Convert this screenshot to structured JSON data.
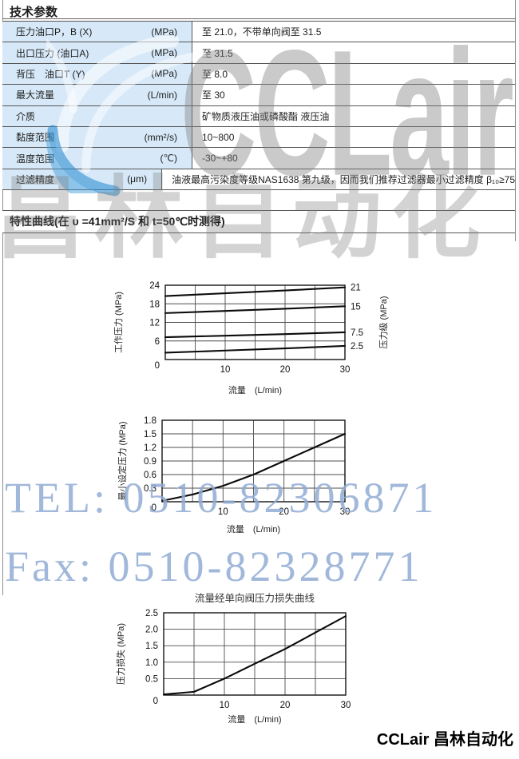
{
  "page": {
    "footer_brand": "CCLair 昌林自动化"
  },
  "sections": {
    "params_title": "技术参数",
    "curves_title": "特性曲线(在 υ =41mm²/S 和 t=50℃时测得)"
  },
  "table": {
    "rows": [
      {
        "label": "压力油口P，B (X)",
        "unit": "(MPa)",
        "value": "至 21.0，不带单向阀至 31.5"
      },
      {
        "label": "出口压力 (油口A)",
        "unit": "(MPa)",
        "value": "至 31.5"
      },
      {
        "label": "背压　油口T (Y)",
        "unit": "(MPa)",
        "value": "至 8.0"
      },
      {
        "label": "最大流量",
        "unit": "(L/min)",
        "value": "至 30"
      },
      {
        "label": "介质",
        "unit": "",
        "value": "矿物质液压油或磷酸酯 液压油"
      },
      {
        "label": "黏度范围",
        "unit": "(mm²/s)",
        "value": "10~800"
      },
      {
        "label": "温度范围",
        "unit": "(℃)",
        "value": "-30~+80"
      },
      {
        "label": "过滤精度",
        "unit": "(μm)",
        "value": "油液最高污染度等级NAS1638 第九级，因而我们推荐过滤器最小过滤精度 β₁₀≥75"
      }
    ]
  },
  "watermark": {
    "brand": "CCLair",
    "brand_cn": "昌林自动化",
    "tel": "TEL: 0510-82306871",
    "fax": "Fax: 0510-82328771",
    "swoosh_blue": "#2f8fd2",
    "text_gray": "#808080",
    "contact_blue": "#91acd4"
  },
  "chart_data": [
    {
      "type": "line",
      "title": "",
      "xlabel": "流量",
      "xunit": "(L/min)",
      "ylabel_left": "工作压力 (MPa)",
      "ylabel_right": "压力级 (MPa)",
      "xlim": [
        0,
        30
      ],
      "ylim": [
        0,
        24
      ],
      "xgrid_step": 5,
      "xticks": [
        "0",
        "10",
        "20",
        "30"
      ],
      "yticks": [
        "0",
        "6",
        "12",
        "18",
        "24"
      ],
      "grid": true,
      "legend_position": "right-axis-labels",
      "series": [
        {
          "name": "压力级 21 MPa",
          "right_label": "21",
          "points": [
            [
              0,
              20.5
            ],
            [
              10,
              21.4
            ],
            [
              20,
              22.3
            ],
            [
              30,
              23.3
            ]
          ]
        },
        {
          "name": "压力级 15 MPa",
          "right_label": "15",
          "points": [
            [
              0,
              15.0
            ],
            [
              10,
              15.7
            ],
            [
              20,
              16.4
            ],
            [
              30,
              17.2
            ]
          ]
        },
        {
          "name": "压力级 7.5 MPa",
          "right_label": "7.5",
          "points": [
            [
              0,
              7.2
            ],
            [
              10,
              7.7
            ],
            [
              20,
              8.2
            ],
            [
              30,
              8.8
            ]
          ]
        },
        {
          "name": "压力级 2.5 MPa",
          "right_label": "2.5",
          "points": [
            [
              0,
              2.2
            ],
            [
              10,
              2.9
            ],
            [
              20,
              3.6
            ],
            [
              30,
              4.4
            ]
          ]
        }
      ]
    },
    {
      "type": "line",
      "title": "",
      "xlabel": "流量",
      "xunit": "(L/min)",
      "ylabel_left": "最小设定压力 (MPa)",
      "xlim": [
        0,
        30
      ],
      "ylim": [
        0,
        1.8
      ],
      "xgrid_step": 5,
      "xticks": [
        "0",
        "10",
        "20",
        "30"
      ],
      "yticks": [
        "0",
        "0.3",
        "0.6",
        "0.9",
        "1.2",
        "1.5",
        "1.8"
      ],
      "grid": true,
      "series": [
        {
          "name": "最小设定压力",
          "points": [
            [
              0,
              0.02
            ],
            [
              5,
              0.16
            ],
            [
              10,
              0.35
            ],
            [
              15,
              0.6
            ],
            [
              20,
              0.9
            ],
            [
              25,
              1.2
            ],
            [
              30,
              1.5
            ]
          ]
        }
      ]
    },
    {
      "type": "line",
      "title": "流量经单向阀压力损失曲线",
      "xlabel": "流量",
      "xunit": "(L/min)",
      "ylabel_left": "压力损失 (MPa)",
      "xlim": [
        0,
        30
      ],
      "ylim": [
        0,
        2.5
      ],
      "xgrid_step": 5,
      "xticks": [
        "0",
        "10",
        "20",
        "30"
      ],
      "yticks": [
        "0",
        "0.5",
        "1.0",
        "1.5",
        "2.0",
        "2.5"
      ],
      "grid": true,
      "series": [
        {
          "name": "压力损失",
          "points": [
            [
              0,
              0.02
            ],
            [
              5,
              0.1
            ],
            [
              10,
              0.5
            ],
            [
              15,
              0.95
            ],
            [
              20,
              1.4
            ],
            [
              25,
              1.9
            ],
            [
              30,
              2.4
            ]
          ]
        }
      ]
    }
  ]
}
